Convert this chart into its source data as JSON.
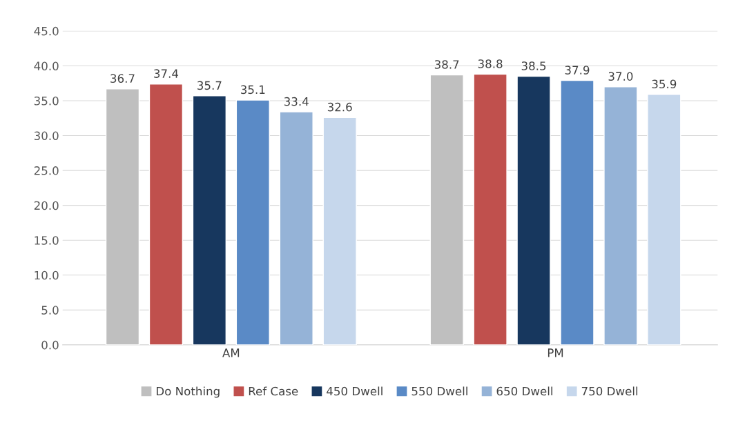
{
  "chart_data": {
    "type": "bar",
    "categories": [
      "AM",
      "PM"
    ],
    "series": [
      {
        "name": "Do Nothing",
        "color": "#bfbfbf",
        "values": [
          36.7,
          38.7
        ],
        "value_labels": [
          "36.7",
          "38.7"
        ]
      },
      {
        "name": "Ref Case",
        "color": "#c0504d",
        "values": [
          37.4,
          38.8
        ],
        "value_labels": [
          "37.4",
          "38.8"
        ]
      },
      {
        "name": "450 Dwell",
        "color": "#17375e",
        "values": [
          35.7,
          38.5
        ],
        "value_labels": [
          "35.7",
          "38.5"
        ]
      },
      {
        "name": "550 Dwell",
        "color": "#5a8ac6",
        "values": [
          35.1,
          37.9
        ],
        "value_labels": [
          "35.1",
          "37.9"
        ]
      },
      {
        "name": "650 Dwell",
        "color": "#95b3d7",
        "values": [
          33.4,
          37.0
        ],
        "value_labels": [
          "33.4",
          "37.0"
        ]
      },
      {
        "name": "750 Dwell",
        "color": "#c6d7ec",
        "values": [
          32.6,
          35.9
        ],
        "value_labels": [
          "32.6",
          "35.9"
        ]
      }
    ],
    "ylim": [
      0,
      45
    ],
    "yticks": [
      {
        "value": 0,
        "label": "0.0"
      },
      {
        "value": 5,
        "label": "5.0"
      },
      {
        "value": 10,
        "label": "10.0"
      },
      {
        "value": 15,
        "label": "15.0"
      },
      {
        "value": 20,
        "label": "20.0"
      },
      {
        "value": 25,
        "label": "25.0"
      },
      {
        "value": 30,
        "label": "30.0"
      },
      {
        "value": 35,
        "label": "35.0"
      },
      {
        "value": 40,
        "label": "40.0"
      },
      {
        "value": 45,
        "label": "45.0"
      }
    ],
    "grid": "y",
    "legend": "bottom"
  }
}
